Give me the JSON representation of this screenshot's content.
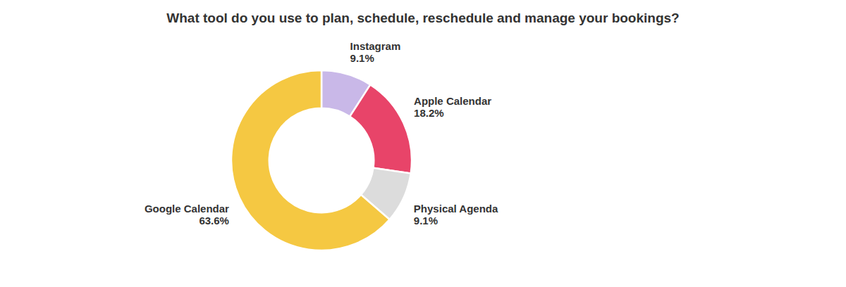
{
  "chart_data": {
    "type": "donut",
    "title": "What tool do you use to plan, schedule, reschedule and manage your bookings?",
    "categories": [
      "Instagram",
      "Apple Calendar",
      "Physical Agenda",
      "Google Calendar"
    ],
    "values": [
      9.1,
      18.2,
      9.1,
      63.6
    ],
    "value_labels": [
      "9.1%",
      "18.2%",
      "9.1%",
      "63.6%"
    ],
    "colors": [
      "#c9b8e8",
      "#e84469",
      "#dcdcdc",
      "#f5c842"
    ],
    "data_labels": true
  }
}
